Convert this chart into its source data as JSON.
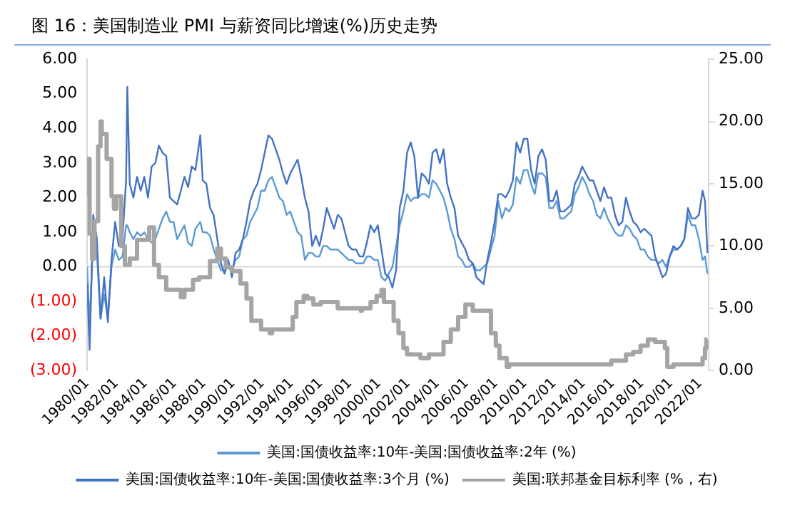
{
  "chart_data": {
    "type": "line",
    "title": "图 16：美国制造业 PMI 与薪资同比增速(%)历史走势",
    "marker": "none",
    "legend": "bottom",
    "x": [
      "1980-01",
      "1980-03",
      "1980-06",
      "1980-09",
      "1980-12",
      "1981-03",
      "1981-06",
      "1981-09",
      "1981-12",
      "1982-03",
      "1982-06",
      "1982-09",
      "1982-10",
      "1982-12",
      "1983-03",
      "1983-06",
      "1983-09",
      "1983-12",
      "1984-03",
      "1984-06",
      "1984-09",
      "1984-12",
      "1985-03",
      "1985-06",
      "1985-09",
      "1985-12",
      "1986-03",
      "1986-06",
      "1986-09",
      "1986-12",
      "1987-03",
      "1987-06",
      "1987-10",
      "1987-12",
      "1988-03",
      "1988-06",
      "1988-09",
      "1988-12",
      "1989-03",
      "1989-06",
      "1989-09",
      "1989-12",
      "1990-03",
      "1990-06",
      "1990-09",
      "1990-12",
      "1991-03",
      "1991-06",
      "1991-09",
      "1991-12",
      "1992-03",
      "1992-06",
      "1992-09",
      "1992-12",
      "1993-03",
      "1993-06",
      "1993-09",
      "1993-12",
      "1994-03",
      "1994-06",
      "1994-09",
      "1994-12",
      "1995-03",
      "1995-06",
      "1995-09",
      "1995-12",
      "1996-03",
      "1996-06",
      "1996-09",
      "1996-12",
      "1997-03",
      "1997-06",
      "1997-09",
      "1997-12",
      "1998-03",
      "1998-06",
      "1998-09",
      "1998-12",
      "1999-03",
      "1999-06",
      "1999-09",
      "1999-12",
      "2000-03",
      "2000-06",
      "2000-09",
      "2000-12",
      "2001-03",
      "2001-06",
      "2001-09",
      "2001-12",
      "2002-03",
      "2002-06",
      "2002-09",
      "2002-12",
      "2003-03",
      "2003-06",
      "2003-09",
      "2003-12",
      "2004-03",
      "2004-06",
      "2004-09",
      "2004-12",
      "2005-03",
      "2005-06",
      "2005-09",
      "2005-12",
      "2006-03",
      "2006-06",
      "2006-09",
      "2006-12",
      "2007-03",
      "2007-06",
      "2007-09",
      "2007-12",
      "2008-03",
      "2008-06",
      "2008-09",
      "2008-12",
      "2009-03",
      "2009-06",
      "2009-09",
      "2009-12",
      "2010-03",
      "2010-06",
      "2010-09",
      "2010-12",
      "2011-03",
      "2011-06",
      "2011-09",
      "2011-12",
      "2012-03",
      "2012-06",
      "2012-09",
      "2012-12",
      "2013-03",
      "2013-06",
      "2013-09",
      "2013-12",
      "2014-03",
      "2014-06",
      "2014-09",
      "2014-12",
      "2015-03",
      "2015-06",
      "2015-09",
      "2015-12",
      "2016-03",
      "2016-06",
      "2016-09",
      "2016-12",
      "2017-03",
      "2017-06",
      "2017-09",
      "2017-12",
      "2018-03",
      "2018-06",
      "2018-09",
      "2018-12",
      "2019-03",
      "2019-06",
      "2019-09",
      "2019-12",
      "2020-03",
      "2020-06",
      "2020-09",
      "2020-12",
      "2021-03",
      "2021-06",
      "2021-09",
      "2021-12",
      "2022-03",
      "2022-05",
      "2022-07"
    ],
    "series": [
      {
        "name": "美国:国债收益率:10年-美国:国债收益率:2年 (%)",
        "type": "line",
        "color": "#5b9bd5",
        "values": [
          0.0,
          -1.7,
          0.9,
          0.4,
          -1.5,
          -0.8,
          -1.5,
          0.0,
          0.5,
          0.2,
          0.3,
          1.2,
          1.2,
          1.0,
          0.8,
          1.0,
          0.9,
          1.0,
          0.8,
          0.7,
          0.8,
          1.1,
          1.4,
          1.6,
          1.3,
          1.3,
          0.8,
          1.0,
          1.2,
          0.7,
          0.6,
          1.1,
          1.3,
          1.0,
          1.0,
          0.9,
          0.5,
          0.2,
          -0.1,
          -0.1,
          0.0,
          -0.1,
          0.2,
          0.3,
          0.8,
          0.9,
          1.3,
          1.5,
          1.7,
          2.2,
          2.2,
          2.5,
          2.6,
          2.3,
          2.0,
          1.9,
          1.5,
          1.6,
          1.3,
          1.0,
          0.9,
          0.2,
          0.4,
          0.4,
          0.3,
          0.3,
          0.6,
          0.6,
          0.5,
          0.5,
          0.5,
          0.4,
          0.3,
          0.2,
          0.2,
          0.1,
          0.1,
          0.1,
          0.3,
          0.3,
          0.2,
          0.2,
          -0.3,
          -0.4,
          -0.2,
          0.0,
          0.6,
          1.2,
          1.6,
          2.1,
          1.9,
          2.0,
          2.0,
          2.1,
          2.1,
          2.0,
          2.5,
          2.4,
          2.2,
          2.0,
          1.6,
          1.1,
          0.8,
          0.3,
          0.2,
          0.0,
          0.0,
          0.1,
          -0.1,
          -0.1,
          0.0,
          0.1,
          0.5,
          0.9,
          1.9,
          1.4,
          1.7,
          1.6,
          1.8,
          2.6,
          2.4,
          2.8,
          2.8,
          2.4,
          2.1,
          2.7,
          2.7,
          2.6,
          1.7,
          1.7,
          1.9,
          1.4,
          1.4,
          1.5,
          1.6,
          2.1,
          2.3,
          2.6,
          2.4,
          2.1,
          1.9,
          1.5,
          1.4,
          1.7,
          1.4,
          1.2,
          1.0,
          0.9,
          0.9,
          1.2,
          1.1,
          0.9,
          0.8,
          0.5,
          0.5,
          0.3,
          0.2,
          0.2,
          0.1,
          0.2,
          0.0,
          0.3,
          0.5,
          0.5,
          0.6,
          0.8,
          1.5,
          1.2,
          1.2,
          0.8,
          0.2,
          0.3,
          -0.2
        ]
      },
      {
        "name": "美国:国债收益率:10年-美国:国债收益率:3个月 (%)",
        "type": "line",
        "color": "#4472c4",
        "values": [
          -0.5,
          -2.4,
          1.5,
          0.8,
          -1.5,
          -0.3,
          -1.6,
          0.2,
          1.3,
          0.6,
          0.8,
          2.5,
          5.2,
          2.4,
          2.0,
          2.6,
          2.2,
          2.6,
          2.0,
          2.9,
          3.0,
          3.5,
          3.3,
          3.2,
          2.0,
          1.9,
          1.8,
          2.2,
          2.6,
          2.3,
          2.9,
          2.8,
          3.8,
          2.5,
          2.4,
          1.7,
          1.5,
          0.8,
          0.1,
          -0.2,
          0.2,
          -0.3,
          0.4,
          0.5,
          0.8,
          1.3,
          1.9,
          2.2,
          2.4,
          2.8,
          3.3,
          3.8,
          3.7,
          3.4,
          3.1,
          2.7,
          2.4,
          2.7,
          2.9,
          3.1,
          2.6,
          2.0,
          1.6,
          0.6,
          0.9,
          0.6,
          1.1,
          1.7,
          1.4,
          1.1,
          1.5,
          1.4,
          1.0,
          0.6,
          0.5,
          0.5,
          0.3,
          0.3,
          0.7,
          1.2,
          1.0,
          1.2,
          0.5,
          -0.2,
          -0.3,
          -0.6,
          -0.1,
          1.7,
          2.2,
          3.3,
          3.6,
          3.2,
          2.0,
          2.7,
          2.6,
          2.4,
          3.3,
          3.4,
          3.0,
          3.4,
          2.4,
          2.0,
          1.7,
          0.9,
          0.7,
          0.5,
          0.2,
          0.1,
          -0.3,
          -0.4,
          -0.5,
          0.2,
          0.7,
          1.3,
          2.1,
          2.1,
          2.0,
          2.2,
          2.5,
          3.6,
          3.3,
          3.7,
          3.7,
          2.8,
          2.4,
          3.2,
          3.4,
          3.1,
          1.9,
          1.9,
          2.2,
          1.6,
          1.6,
          1.7,
          1.8,
          2.4,
          2.6,
          2.9,
          2.7,
          2.5,
          2.5,
          2.2,
          1.9,
          2.3,
          2.0,
          2.0,
          1.5,
          1.2,
          1.3,
          2.0,
          1.6,
          1.3,
          1.2,
          1.0,
          1.1,
          1.0,
          0.9,
          0.3,
          0.0,
          -0.3,
          -0.2,
          0.3,
          0.6,
          0.5,
          0.6,
          0.8,
          1.7,
          1.4,
          1.4,
          1.5,
          2.2,
          1.9,
          0.4
        ]
      },
      {
        "name": "美国:联邦基金目标利率 (%，右)",
        "type": "step",
        "axis": "y2",
        "color": "#a5a5a5",
        "x": [
          "1980-01",
          "1980-03",
          "1980-05",
          "1980-07",
          "1980-10",
          "1980-12",
          "1981-01",
          "1981-05",
          "1981-09",
          "1981-11",
          "1982-01",
          "1982-05",
          "1982-08",
          "1982-12",
          "1983-06",
          "1984-04",
          "1984-08",
          "1984-12",
          "1985-06",
          "1986-06",
          "1986-09",
          "1987-04",
          "1987-09",
          "1988-06",
          "1988-12",
          "1989-03",
          "1989-07",
          "1989-12",
          "1990-07",
          "1990-12",
          "1991-04",
          "1991-12",
          "1992-07",
          "1992-09",
          "1994-02",
          "1994-05",
          "1994-11",
          "1995-02",
          "1995-07",
          "1996-01",
          "1997-03",
          "1998-10",
          "1998-11",
          "1999-06",
          "1999-11",
          "2000-03",
          "2000-05",
          "2001-01",
          "2001-05",
          "2001-09",
          "2001-12",
          "2002-11",
          "2003-06",
          "2004-06",
          "2004-12",
          "2005-06",
          "2005-12",
          "2006-06",
          "2007-09",
          "2008-01",
          "2008-04",
          "2008-10",
          "2008-12",
          "2015-12",
          "2016-12",
          "2017-06",
          "2017-12",
          "2018-06",
          "2018-12",
          "2019-08",
          "2019-10",
          "2020-03",
          "2022-03",
          "2022-05",
          "2022-06",
          "2022-07"
        ],
        "values": [
          14,
          17,
          11,
          9,
          12,
          18,
          20,
          19,
          17,
          14,
          13,
          14,
          10,
          8.5,
          9,
          10.5,
          11.5,
          8.5,
          7.5,
          6.5,
          5.9,
          6.5,
          7.3,
          7.5,
          8.8,
          9.8,
          9,
          8.3,
          8,
          7,
          5.8,
          4,
          3.3,
          3,
          3.3,
          4.3,
          5.5,
          6,
          5.8,
          5.3,
          5.5,
          5,
          4.8,
          5,
          5.5,
          6,
          6.5,
          5.5,
          4,
          3,
          1.8,
          1.3,
          1,
          1.3,
          2.3,
          3.3,
          4.3,
          5.3,
          4.8,
          3,
          2,
          1,
          0.3,
          0.5,
          0.8,
          1.3,
          1.5,
          2,
          2.5,
          2.3,
          1.8,
          0.3,
          0.5,
          1,
          1.8,
          2.5
        ]
      }
    ],
    "xlim": [
      "1980-01",
      "2022-08"
    ],
    "xticks": [
      {
        "value": "1980-01",
        "label": "1980/01"
      },
      {
        "value": "1982-01",
        "label": "1982/01"
      },
      {
        "value": "1984-01",
        "label": "1984/01"
      },
      {
        "value": "1986-01",
        "label": "1986/01"
      },
      {
        "value": "1988-01",
        "label": "1988/01"
      },
      {
        "value": "1990-01",
        "label": "1990/01"
      },
      {
        "value": "1992-01",
        "label": "1992/01"
      },
      {
        "value": "1994-01",
        "label": "1994/01"
      },
      {
        "value": "1996-01",
        "label": "1996/01"
      },
      {
        "value": "1998-01",
        "label": "1998/01"
      },
      {
        "value": "2000-01",
        "label": "2000/01"
      },
      {
        "value": "2002-01",
        "label": "2002/01"
      },
      {
        "value": "2004-01",
        "label": "2004/01"
      },
      {
        "value": "2006-01",
        "label": "2006/01"
      },
      {
        "value": "2008-01",
        "label": "2008/01"
      },
      {
        "value": "2010-01",
        "label": "2010/01"
      },
      {
        "value": "2012-01",
        "label": "2012/01"
      },
      {
        "value": "2014-01",
        "label": "2014/01"
      },
      {
        "value": "2016-01",
        "label": "2016/01"
      },
      {
        "value": "2018-01",
        "label": "2018/01"
      },
      {
        "value": "2020-01",
        "label": "2020/01"
      },
      {
        "value": "2022-01",
        "label": "2022/01"
      }
    ],
    "ylim": [
      -3,
      6
    ],
    "yticks": [
      {
        "value": -3,
        "label": "(3.00)"
      },
      {
        "value": -2,
        "label": "(2.00)"
      },
      {
        "value": -1,
        "label": "(1.00)"
      },
      {
        "value": 0,
        "label": "0.00"
      },
      {
        "value": 1,
        "label": "1.00"
      },
      {
        "value": 2,
        "label": "2.00"
      },
      {
        "value": 3,
        "label": "3.00"
      },
      {
        "value": 4,
        "label": "4.00"
      },
      {
        "value": 5,
        "label": "5.00"
      },
      {
        "value": 6,
        "label": "6.00"
      }
    ],
    "y2lim": [
      0,
      25
    ],
    "y2ticks": [
      {
        "value": 0,
        "label": "0.00"
      },
      {
        "value": 5,
        "label": "5.00"
      },
      {
        "value": 10,
        "label": "10.00"
      },
      {
        "value": 15,
        "label": "15.00"
      },
      {
        "value": 20,
        "label": "20.00"
      },
      {
        "value": 25,
        "label": "25.00"
      }
    ],
    "ref_lines": [
      {
        "axis": "y",
        "value": 0,
        "color": "#d9d9d9"
      }
    ]
  }
}
